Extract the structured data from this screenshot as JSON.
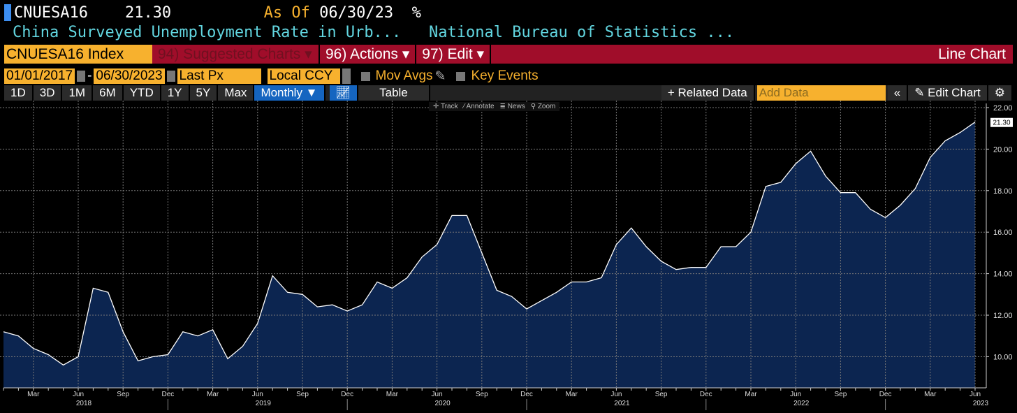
{
  "header": {
    "ticker": "CNUESA16",
    "last": "21.30",
    "as_of_label": "As Of",
    "as_of_date": "06/30/23",
    "unit": "%",
    "description": "China Surveyed Unemployment Rate in Urb...",
    "source": "National Bureau of Statistics ..."
  },
  "menubar": {
    "security": "CNUESA16 Index",
    "suggested": "94) Suggested Charts ▾",
    "actions": "96) Actions ▾",
    "edit": "97) Edit ▾",
    "chart_type": "Line Chart"
  },
  "options": {
    "start_date": "01/01/2017",
    "dash": "-",
    "end_date": "06/30/2023",
    "field": "Last Px",
    "currency": "Local CCY",
    "mov_avgs": "Mov Avgs",
    "key_events": "Key Events"
  },
  "toolbar": {
    "ranges": [
      "1D",
      "3D",
      "1M",
      "6M",
      "YTD",
      "1Y",
      "5Y",
      "Max"
    ],
    "frequency": "Monthly ▼",
    "table": "Table",
    "related": "+ Related Data",
    "add_data_placeholder": "Add Data",
    "collapse": "«",
    "edit_chart": "Edit Chart"
  },
  "chart_tools": [
    "✛ Track",
    "⁄ Annotate",
    "≣ News",
    "⚲ Zoom"
  ],
  "colors": {
    "fill": "#0c2550",
    "line": "#ffffff",
    "accent": "#f7b12e",
    "menu": "#a00d2a"
  },
  "chart_data": {
    "type": "area",
    "grid": true,
    "ylim": [
      8.5,
      22.2
    ],
    "yticks": [
      "10.00",
      "12.00",
      "14.00",
      "16.00",
      "18.00",
      "20.00",
      "22.00"
    ],
    "last_value_label": "21.30",
    "x_start": "2018-01",
    "x_end": "2023-06",
    "month_labels": [
      "Mar",
      "Jun",
      "Sep",
      "Dec"
    ],
    "years": [
      "2018",
      "2019",
      "2020",
      "2021",
      "2022",
      "2023"
    ],
    "values": [
      11.2,
      11.0,
      10.4,
      10.1,
      9.6,
      10.0,
      13.3,
      13.1,
      11.2,
      9.8,
      10.0,
      10.1,
      11.2,
      11.0,
      11.3,
      9.9,
      10.5,
      11.6,
      13.9,
      13.1,
      13.0,
      12.4,
      12.5,
      12.2,
      12.5,
      13.6,
      13.3,
      13.8,
      14.8,
      15.4,
      16.8,
      16.8,
      15.0,
      13.2,
      12.9,
      12.3,
      12.7,
      13.1,
      13.6,
      13.6,
      13.8,
      15.4,
      16.2,
      15.3,
      14.6,
      14.2,
      14.3,
      14.3,
      15.3,
      15.3,
      16.0,
      18.2,
      18.4,
      19.3,
      19.9,
      18.7,
      17.9,
      17.9,
      17.1,
      16.7,
      17.3,
      18.1,
      19.6,
      20.4,
      20.8,
      21.3
    ]
  }
}
